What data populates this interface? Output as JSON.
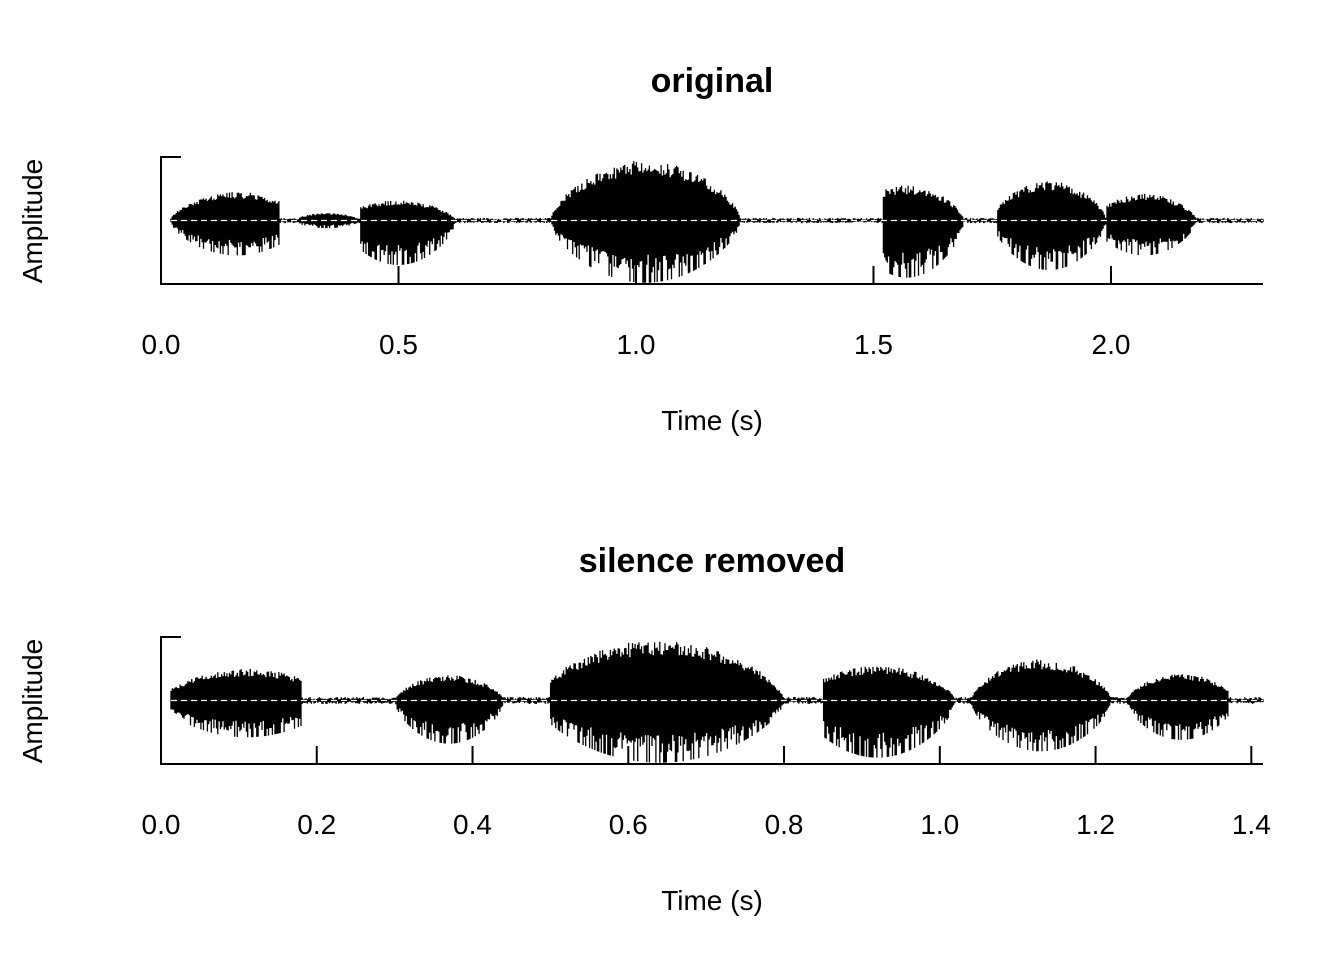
{
  "chart_data": [
    {
      "type": "line",
      "title": "original",
      "xlabel": "Time (s)",
      "ylabel": "Amplitude",
      "xlim": [
        0.0,
        2.32
      ],
      "ylim": [
        -1.0,
        1.0
      ],
      "xticks": [
        0.0,
        0.5,
        1.0,
        1.5,
        2.0
      ],
      "xtick_labels": [
        "0.0",
        "0.5",
        "1.0",
        "1.5",
        "2.0"
      ],
      "grid": false,
      "series": [
        {
          "color": "#000000",
          "segments": [
            {
              "start": 0.02,
              "end": 0.25,
              "peak": 0.45,
              "trough": 0.55,
              "center": 0.16
            },
            {
              "start": 0.29,
              "end": 0.42,
              "peak": 0.12,
              "trough": 0.12,
              "center": 0.35
            },
            {
              "start": 0.42,
              "end": 0.62,
              "peak": 0.32,
              "trough": 0.7,
              "center": 0.5
            },
            {
              "start": 0.82,
              "end": 1.22,
              "peak": 0.95,
              "trough": 0.98,
              "center": 1.02
            },
            {
              "start": 1.52,
              "end": 1.69,
              "peak": 0.55,
              "trough": 0.9,
              "center": 1.57
            },
            {
              "start": 1.76,
              "end": 1.99,
              "peak": 0.62,
              "trough": 0.78,
              "center": 1.87
            },
            {
              "start": 1.99,
              "end": 2.18,
              "peak": 0.42,
              "trough": 0.55,
              "center": 2.07
            }
          ],
          "noise_level": 0.03
        }
      ],
      "baseline": {
        "style": "dashed",
        "color": "#ffffff",
        "y": 0.0
      }
    },
    {
      "type": "line",
      "title": "silence removed",
      "xlabel": "Time (s)",
      "ylabel": "Amplitude",
      "xlim": [
        0.0,
        1.415
      ],
      "ylim": [
        -1.0,
        1.0
      ],
      "xticks": [
        0.0,
        0.2,
        0.4,
        0.6,
        0.8,
        1.0,
        1.2,
        1.4
      ],
      "xtick_labels": [
        "0.0",
        "0.2",
        "0.4",
        "0.6",
        "0.8",
        "1.0",
        "1.2",
        "1.4"
      ],
      "grid": false,
      "series": [
        {
          "color": "#000000",
          "segments": [
            {
              "start": 0.0,
              "end": 0.18,
              "peak": 0.5,
              "trough": 0.58,
              "center": 0.11
            },
            {
              "start": 0.3,
              "end": 0.44,
              "peak": 0.4,
              "trough": 0.68,
              "center": 0.37
            },
            {
              "start": 0.5,
              "end": 0.8,
              "peak": 0.95,
              "trough": 0.98,
              "center": 0.64
            },
            {
              "start": 0.85,
              "end": 1.02,
              "peak": 0.55,
              "trough": 0.9,
              "center": 0.92
            },
            {
              "start": 1.04,
              "end": 1.22,
              "peak": 0.65,
              "trough": 0.8,
              "center": 1.13
            },
            {
              "start": 1.24,
              "end": 1.37,
              "peak": 0.42,
              "trough": 0.62,
              "center": 1.31
            }
          ],
          "noise_level": 0.04
        }
      ],
      "baseline": {
        "style": "dashed",
        "color": "#ffffff",
        "y": 0.0
      }
    }
  ]
}
